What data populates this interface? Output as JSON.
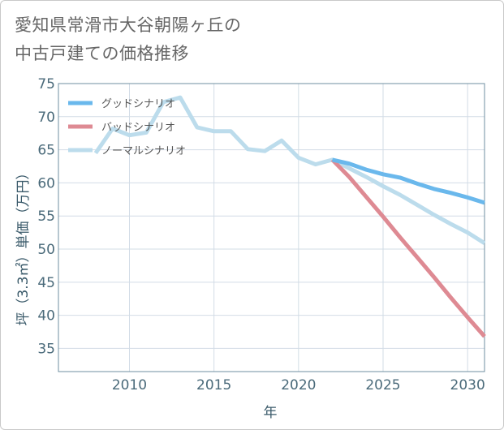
{
  "title_lines": [
    "愛知県常滑市大谷朝陽ヶ丘の",
    "中古戸建ての価格推移"
  ],
  "colors": {
    "good": "#6ab8ec",
    "bad": "#de8a93",
    "normal": "#bcdcec",
    "grid": "#d2dce6",
    "plot_border": "#6f8fa0"
  },
  "chart_data": {
    "type": "line",
    "title": "愛知県常滑市大谷朝陽ヶ丘の中古戸建ての価格推移",
    "xlabel": "年",
    "ylabel": "坪（3.3㎡）単価（万円）",
    "xlim": [
      2005.8,
      2031
    ],
    "ylim": [
      31.5,
      75
    ],
    "x_ticks": [
      2010,
      2015,
      2020,
      2025,
      2030
    ],
    "y_ticks": [
      35,
      40,
      45,
      50,
      55,
      60,
      65,
      70,
      75
    ],
    "legend_position": "top-left",
    "series": [
      {
        "name": "グッドシナリオ",
        "key": "good",
        "x": [
          2022,
          2023,
          2024,
          2025,
          2026,
          2027,
          2028,
          2029,
          2030,
          2031
        ],
        "y": [
          63.5,
          62.9,
          62.0,
          61.3,
          60.8,
          59.9,
          59.1,
          58.5,
          57.8,
          57.0
        ]
      },
      {
        "name": "バッドシナリオ",
        "key": "bad",
        "x": [
          2022,
          2023,
          2024,
          2025,
          2026,
          2027,
          2028,
          2029,
          2030,
          2031
        ],
        "y": [
          63.5,
          60.9,
          57.9,
          54.9,
          51.8,
          48.8,
          45.8,
          42.7,
          39.7,
          36.8
        ]
      },
      {
        "name": "ノーマルシナリオ",
        "key": "normal",
        "x": [
          2008,
          2009,
          2010,
          2011,
          2012,
          2013,
          2014,
          2015,
          2016,
          2017,
          2018,
          2019,
          2020,
          2021,
          2022,
          2023,
          2024,
          2025,
          2026,
          2027,
          2028,
          2029,
          2030,
          2031
        ],
        "y": [
          64.5,
          68.2,
          67.2,
          67.6,
          72.2,
          72.9,
          68.4,
          67.8,
          67.8,
          65.1,
          64.8,
          66.4,
          63.8,
          62.8,
          63.5,
          62.2,
          60.9,
          59.5,
          58.2,
          56.7,
          55.2,
          53.8,
          52.5,
          50.9
        ]
      }
    ]
  }
}
